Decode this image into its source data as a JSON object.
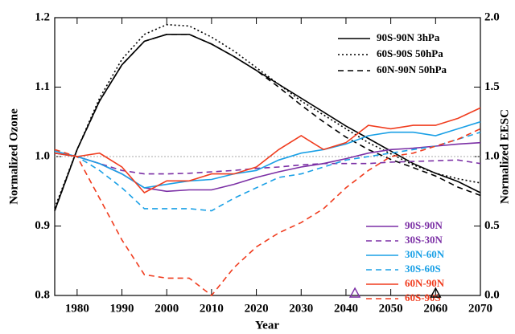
{
  "chart_data": {
    "type": "line",
    "xlabel": "Year",
    "ylabel": "Normalized Ozone",
    "y2label": "Normalized EESC",
    "x": [
      1975,
      1980,
      1985,
      1990,
      1995,
      2000,
      2005,
      2010,
      2015,
      2020,
      2025,
      2030,
      2035,
      2040,
      2045,
      2050,
      2055,
      2060,
      2065,
      2070
    ],
    "xlim": [
      1975,
      2070
    ],
    "xticks": [
      1980,
      1990,
      2000,
      2010,
      2020,
      2030,
      2040,
      2050,
      2060,
      2070
    ],
    "ylim": [
      0.8,
      1.2
    ],
    "yticks": [
      0.8,
      0.9,
      {
        "value": 1,
        "label": "1.0"
      },
      1.1,
      1.2
    ],
    "y2lim": [
      0,
      2
    ],
    "y2ticks": [
      {
        "value": 0,
        "label": "0.0"
      },
      0.5,
      {
        "value": 1,
        "label": "1.0"
      },
      1.5,
      {
        "value": 2,
        "label": "2.0"
      }
    ],
    "reference_line": {
      "value": 1,
      "color": "#aaaaaa"
    },
    "series": [
      {
        "name": "90S-90N 3hPa",
        "color": "#000000",
        "dash": "solid",
        "axis": "y2",
        "values": [
          0.61,
          1.05,
          1.4,
          1.66,
          1.83,
          1.88,
          1.88,
          1.81,
          1.72,
          1.62,
          1.52,
          1.42,
          1.32,
          1.22,
          1.13,
          1.04,
          0.95,
          0.88,
          0.82,
          0.74
        ]
      },
      {
        "name": "60S-90S 50hPa",
        "color": "#000000",
        "dash": "dotted",
        "axis": "y2",
        "values": [
          0.63,
          1.05,
          1.42,
          1.7,
          1.88,
          1.95,
          1.94,
          1.86,
          1.76,
          1.64,
          1.52,
          1.4,
          1.3,
          1.2,
          1.1,
          1.02,
          0.94,
          0.88,
          0.84,
          0.81
        ]
      },
      {
        "name": "60N-90N 50hPa",
        "color": "#000000",
        "dash": "dashed",
        "axis": "y2",
        "values": [
          0.61,
          1.05,
          1.4,
          1.66,
          1.83,
          1.88,
          1.88,
          1.81,
          1.72,
          1.62,
          1.5,
          1.37,
          1.25,
          1.14,
          1.05,
          0.98,
          0.92,
          0.86,
          0.78,
          0.72
        ]
      },
      {
        "name": "90S-90N",
        "color": "#7b2fa5",
        "dash": "solid",
        "values": [
          1.005,
          1.0,
          0.99,
          0.975,
          0.955,
          0.95,
          0.952,
          0.952,
          0.96,
          0.97,
          0.978,
          0.985,
          0.99,
          0.997,
          1.005,
          1.01,
          1.012,
          1.015,
          1.018,
          1.02
        ]
      },
      {
        "name": "30S-30N",
        "color": "#7b2fa5",
        "dash": "dashed",
        "values": [
          1.005,
          1.0,
          0.99,
          0.98,
          0.975,
          0.975,
          0.976,
          0.978,
          0.98,
          0.983,
          0.985,
          0.988,
          0.99,
          0.99,
          0.99,
          0.992,
          0.993,
          0.994,
          0.995,
          0.99
        ]
      },
      {
        "name": "30N-60N",
        "color": "#1aa0e6",
        "dash": "solid",
        "values": [
          1.008,
          1.0,
          0.99,
          0.975,
          0.955,
          0.96,
          0.965,
          0.967,
          0.975,
          0.98,
          0.995,
          1.005,
          1.01,
          1.018,
          1.03,
          1.035,
          1.035,
          1.03,
          1.04,
          1.05
        ]
      },
      {
        "name": "30S-60S",
        "color": "#1aa0e6",
        "dash": "dashed",
        "values": [
          1.005,
          1.0,
          0.98,
          0.955,
          0.925,
          0.925,
          0.925,
          0.922,
          0.94,
          0.955,
          0.97,
          0.975,
          0.985,
          0.995,
          1.0,
          1.005,
          1.01,
          1.015,
          1.025,
          1.035
        ]
      },
      {
        "name": "60N-90N",
        "color": "#f03c1e",
        "dash": "solid",
        "values": [
          1.005,
          1.0,
          1.005,
          0.985,
          0.948,
          0.965,
          0.965,
          0.975,
          0.975,
          0.985,
          1.01,
          1.03,
          1.01,
          1.02,
          1.045,
          1.04,
          1.045,
          1.045,
          1.055,
          1.07
        ]
      },
      {
        "name": "60S-90S",
        "color": "#f03c1e",
        "dash": "dashed",
        "values": [
          1.01,
          1.0,
          0.94,
          0.88,
          0.83,
          0.825,
          0.825,
          0.8,
          0.84,
          0.87,
          0.89,
          0.905,
          0.925,
          0.955,
          0.98,
          1.0,
          1.005,
          1.015,
          1.025,
          1.04
        ]
      }
    ],
    "markers": [
      {
        "x": 2042,
        "color": "#7b2fa5"
      },
      {
        "x": 2060,
        "color": "#000000"
      }
    ]
  }
}
